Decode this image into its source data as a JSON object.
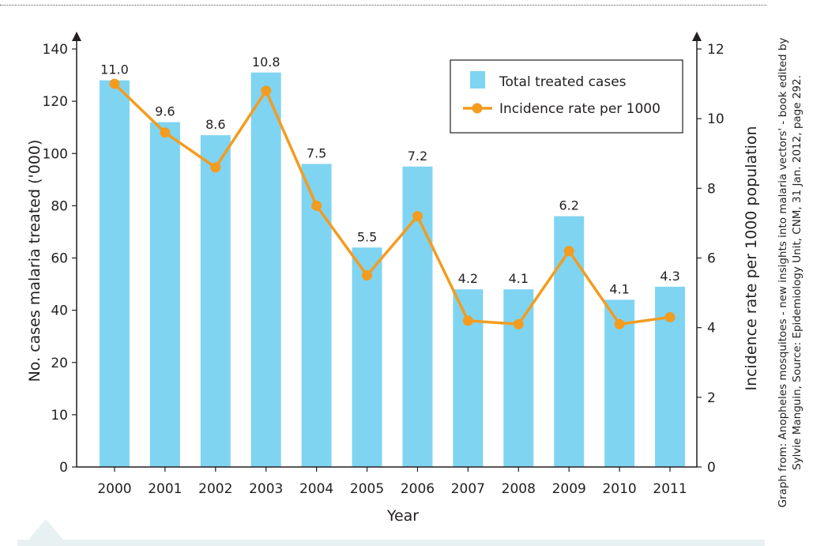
{
  "chart_data": {
    "type": "bar",
    "categories": [
      "2000",
      "2001",
      "2002",
      "2003",
      "2004",
      "2005",
      "2006",
      "2007",
      "2008",
      "2009",
      "2010",
      "2011"
    ],
    "series": [
      {
        "name": "Total treated cases",
        "type": "bar",
        "axis": "left",
        "color": "#7fd4f2",
        "values": [
          128,
          112,
          107,
          131,
          96,
          64,
          95,
          48,
          48,
          76,
          44,
          49
        ]
      },
      {
        "name": "Incidence rate per 1000",
        "type": "line",
        "axis": "right",
        "color": "#f39c1f",
        "values": [
          11.0,
          9.6,
          8.6,
          10.8,
          7.5,
          5.5,
          7.2,
          4.2,
          4.1,
          6.2,
          4.1,
          4.3
        ]
      }
    ],
    "data_labels": [
      "11.0",
      "9.6",
      "8.6",
      "10.8",
      "7.5",
      "5.5",
      "7.2",
      "4.2",
      "4.1",
      "6.2",
      "4.1",
      "4.3"
    ],
    "xlabel": "Year",
    "ylabel": "No. cases malaria treated ('000)",
    "y2label": "Incidence rate per 1000 population",
    "y_ticks": [
      0,
      10,
      20,
      40,
      60,
      80,
      100,
      120,
      140
    ],
    "y_tick_labels": [
      "0",
      "10",
      "20",
      "40",
      "60",
      "80",
      "100",
      "120",
      "140"
    ],
    "y2_ticks": [
      0,
      2,
      4,
      6,
      8,
      10,
      12
    ],
    "y2lim": [
      0,
      12
    ],
    "legend_position": "top-right",
    "grid": false
  },
  "credit": {
    "line1": "Graph from: Anopheles mosquitoes - new insights into malaria vectors' - book edited by",
    "line2": "Sylvie Manguin, Source: Epidemiology Unit, CNM, 31 Jan. 2012, page 292."
  }
}
